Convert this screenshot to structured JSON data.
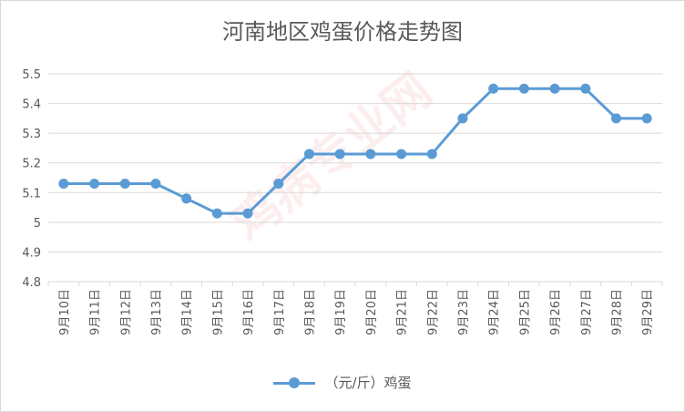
{
  "chart_data": {
    "type": "line",
    "title": "河南地区鸡蛋价格走势图",
    "categories": [
      "9月10日",
      "9月11日",
      "9月12日",
      "9月13日",
      "9月14日",
      "9月15日",
      "9月16日",
      "9月17日",
      "9月18日",
      "9月19日",
      "9月20日",
      "9月21日",
      "9月22日",
      "9月23日",
      "9月24日",
      "9月25日",
      "9月26日",
      "9月27日",
      "9月28日",
      "9月29日"
    ],
    "series": [
      {
        "name": "（元/斤）鸡蛋",
        "values": [
          5.13,
          5.13,
          5.13,
          5.13,
          5.08,
          5.03,
          5.03,
          5.13,
          5.23,
          5.23,
          5.23,
          5.23,
          5.23,
          5.35,
          5.45,
          5.45,
          5.45,
          5.45,
          5.35,
          5.35
        ]
      }
    ],
    "yticks": [
      "4.8",
      "4.9",
      "5",
      "5.1",
      "5.2",
      "5.3",
      "5.4",
      "5.5"
    ],
    "ylim": [
      4.8,
      5.5
    ],
    "grid": true,
    "legend_position": "bottom",
    "line_color": "#5b9bd5",
    "watermark": "鸡病专业网"
  }
}
